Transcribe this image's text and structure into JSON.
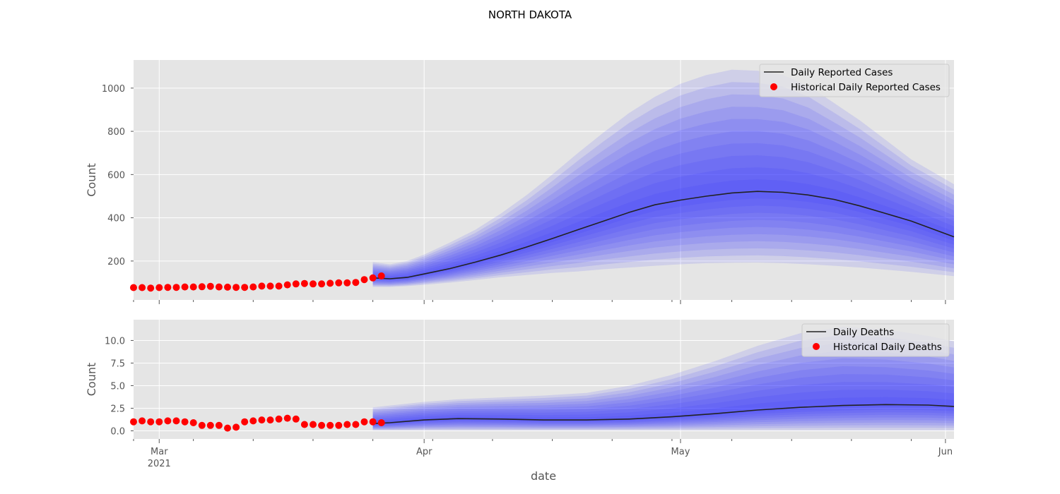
{
  "figure": {
    "title": "NORTH DAKOTA",
    "xlabel": "date",
    "x_ticks": [
      {
        "date": "2021-03-01",
        "label": "Mar",
        "sublabel": "2021"
      },
      {
        "date": "2021-04-01",
        "label": "Apr",
        "sublabel": ""
      },
      {
        "date": "2021-05-01",
        "label": "May",
        "sublabel": ""
      },
      {
        "date": "2021-06-01",
        "label": "Jun",
        "sublabel": ""
      }
    ],
    "xlim": [
      "2021-02-26",
      "2021-06-02"
    ]
  },
  "chart_data": [
    {
      "type": "line",
      "ylabel": "Count",
      "ylim": [
        20,
        1130
      ],
      "y_ticks": [
        200,
        400,
        600,
        800,
        1000
      ],
      "y_tick_labels": [
        "200",
        "400",
        "600",
        "800",
        "1000"
      ],
      "grid": true,
      "legend_position": "top-right",
      "legend": [
        "Daily Reported Cases",
        "Historical Daily Reported Cases"
      ],
      "colors": {
        "line": "#222222",
        "points": "#ff0000",
        "band": "#2f2fff",
        "background": "#e5e5e5"
      },
      "historical": {
        "name": "Historical Daily Reported Cases",
        "start": "2021-02-26",
        "values": [
          77,
          77,
          75,
          77,
          78,
          78,
          80,
          80,
          81,
          83,
          80,
          79,
          78,
          78,
          80,
          84,
          84,
          84,
          90,
          94,
          96,
          94,
          94,
          97,
          99,
          99,
          101,
          114,
          122,
          131
        ]
      },
      "forecast": {
        "name": "Daily Reported Cases",
        "dates": [
          "2021-03-26",
          "2021-03-28",
          "2021-03-30",
          "2021-04-01",
          "2021-04-04",
          "2021-04-07",
          "2021-04-10",
          "2021-04-13",
          "2021-04-16",
          "2021-04-19",
          "2021-04-22",
          "2021-04-25",
          "2021-04-28",
          "2021-05-01",
          "2021-05-04",
          "2021-05-07",
          "2021-05-10",
          "2021-05-13",
          "2021-05-16",
          "2021-05-19",
          "2021-05-22",
          "2021-05-25",
          "2021-05-28",
          "2021-06-02"
        ],
        "median": [
          122,
          118,
          124,
          140,
          165,
          195,
          228,
          265,
          304,
          345,
          385,
          425,
          460,
          482,
          500,
          515,
          522,
          518,
          505,
          485,
          455,
          420,
          385,
          312
        ],
        "upper_outer": [
          195,
          185,
          200,
          230,
          285,
          345,
          420,
          505,
          600,
          700,
          795,
          885,
          960,
          1020,
          1060,
          1085,
          1080,
          1060,
          1010,
          930,
          850,
          760,
          670,
          555
        ],
        "lower_outer": [
          80,
          80,
          84,
          90,
          100,
          112,
          125,
          135,
          145,
          152,
          162,
          170,
          178,
          185,
          190,
          192,
          193,
          190,
          185,
          178,
          170,
          160,
          150,
          130
        ]
      }
    },
    {
      "type": "line",
      "ylabel": "Count",
      "ylim": [
        -0.9,
        12.3
      ],
      "y_ticks": [
        0.0,
        2.5,
        5.0,
        7.5,
        10.0
      ],
      "y_tick_labels": [
        "0.0",
        "2.5",
        "5.0",
        "7.5",
        "10.0"
      ],
      "grid": true,
      "legend_position": "top-right",
      "legend": [
        "Daily Deaths",
        "Historical Daily Deaths"
      ],
      "colors": {
        "line": "#222222",
        "points": "#ff0000",
        "band": "#2f2fff",
        "background": "#e5e5e5"
      },
      "historical": {
        "name": "Historical Daily Deaths",
        "start": "2021-02-26",
        "values": [
          1.0,
          1.1,
          1.0,
          1.0,
          1.1,
          1.1,
          1.0,
          0.9,
          0.6,
          0.6,
          0.6,
          0.3,
          0.4,
          1.0,
          1.1,
          1.2,
          1.2,
          1.3,
          1.4,
          1.3,
          0.7,
          0.7,
          0.6,
          0.6,
          0.6,
          0.7,
          0.7,
          1.0,
          1.0,
          0.9
        ]
      },
      "forecast": {
        "name": "Daily Deaths",
        "dates": [
          "2021-03-26",
          "2021-03-28",
          "2021-04-01",
          "2021-04-05",
          "2021-04-10",
          "2021-04-15",
          "2021-04-20",
          "2021-04-25",
          "2021-04-30",
          "2021-05-05",
          "2021-05-10",
          "2021-05-15",
          "2021-05-20",
          "2021-05-25",
          "2021-05-30",
          "2021-06-02"
        ],
        "median": [
          0.8,
          0.9,
          1.2,
          1.35,
          1.3,
          1.2,
          1.2,
          1.3,
          1.55,
          1.9,
          2.3,
          2.6,
          2.8,
          2.9,
          2.85,
          2.7
        ],
        "upper_outer": [
          2.6,
          2.8,
          3.2,
          3.5,
          3.7,
          3.9,
          4.2,
          5.0,
          6.2,
          7.7,
          9.4,
          10.8,
          11.5,
          11.2,
          10.5,
          9.9
        ],
        "lower_outer": [
          0.05,
          0.05,
          0.05,
          0.05,
          0.05,
          0.05,
          0.05,
          0.05,
          0.05,
          0.05,
          0.05,
          0.05,
          0.05,
          0.05,
          0.05,
          0.05
        ]
      }
    }
  ]
}
